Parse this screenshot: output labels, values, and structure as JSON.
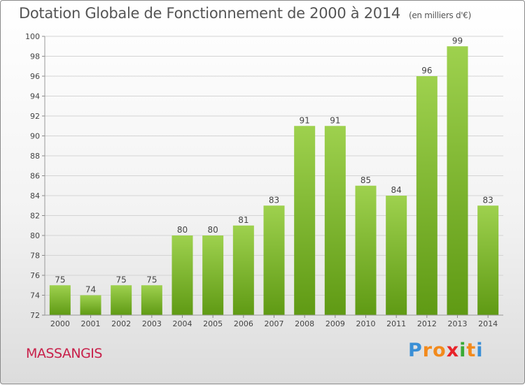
{
  "header": {
    "title": "Dotation Globale de Fonctionnement de 2000 à 2014",
    "unit": "(en milliers d'€)"
  },
  "commune": "MASSANGIS",
  "brand": {
    "letters": [
      "P",
      "r",
      "o",
      "x",
      "i",
      "t",
      "i"
    ],
    "colors": [
      "#3a8fd6",
      "#f28a1c",
      "#f28a1c",
      "#e8232a",
      "#3aaa35",
      "#f28a1c",
      "#3a8fd6"
    ]
  },
  "chart_data": {
    "type": "bar",
    "title": "Dotation Globale de Fonctionnement de 2000 à 2014",
    "ylabel": "(en milliers d'€)",
    "categories": [
      "2000",
      "2001",
      "2002",
      "2003",
      "2004",
      "2005",
      "2006",
      "2007",
      "2008",
      "2009",
      "2010",
      "2011",
      "2012",
      "2013",
      "2014"
    ],
    "values": [
      75,
      74,
      75,
      75,
      80,
      80,
      81,
      83,
      91,
      91,
      85,
      84,
      96,
      99,
      83
    ],
    "ylim": [
      72,
      100
    ],
    "yticks": [
      72,
      74,
      76,
      78,
      80,
      82,
      84,
      86,
      88,
      90,
      92,
      94,
      96,
      98,
      100
    ],
    "grid": true,
    "bar_color_top": "#9ed14e",
    "bar_color_bottom": "#5f9a14"
  }
}
